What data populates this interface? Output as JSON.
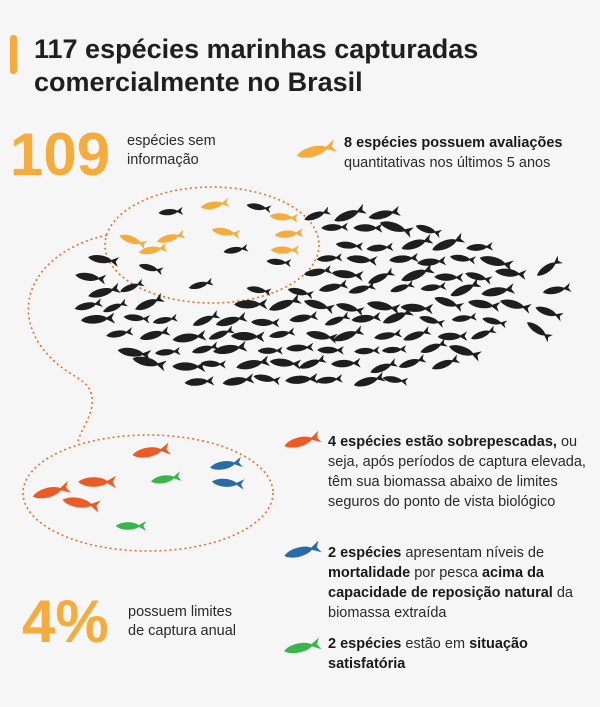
{
  "title": "117 espécies marinhas capturadas comercialmente no Brasil",
  "stat_109": {
    "number": "109",
    "label_line1": "espécies sem",
    "label_line2": "informação"
  },
  "stat_4pct": {
    "number": "4%",
    "label_line1": "possuem limites",
    "label_line2": "de captura anual"
  },
  "yellow_note": {
    "bold": "8 espécies possuem avaliações",
    "rest": "quantitativas nos últimos 5 anos"
  },
  "orange_note": {
    "bold": "4 espécies estão sobrepescadas,",
    "rest": "ou seja, após períodos de captura elevada, têm sua biomassa abaixo de limites seguros do ponto de vista biológico"
  },
  "blue_note": {
    "bold1": "2 espécies",
    "text1": " apresentam níveis de ",
    "bold2": "mortalidade",
    "text2": " por pesca ",
    "bold3": "acima da capacidade de reposição natural",
    "text3": " da biomassa extraída"
  },
  "green_note": {
    "bold1": "2 espécies",
    "text1": " estão em ",
    "bold2": "situação satisfatória"
  },
  "colors": {
    "accent": "#f5ac3c",
    "dark_fish": "#1e1e1e",
    "orange_fish": "#ee5a24",
    "blue_fish": "#2a6aa8",
    "green_fish": "#39b54a",
    "dotted_line": "#e8702a"
  },
  "icons": [
    "fish-icon-yellow",
    "fish-icon-orange",
    "fish-icon-blue",
    "fish-icon-green"
  ]
}
